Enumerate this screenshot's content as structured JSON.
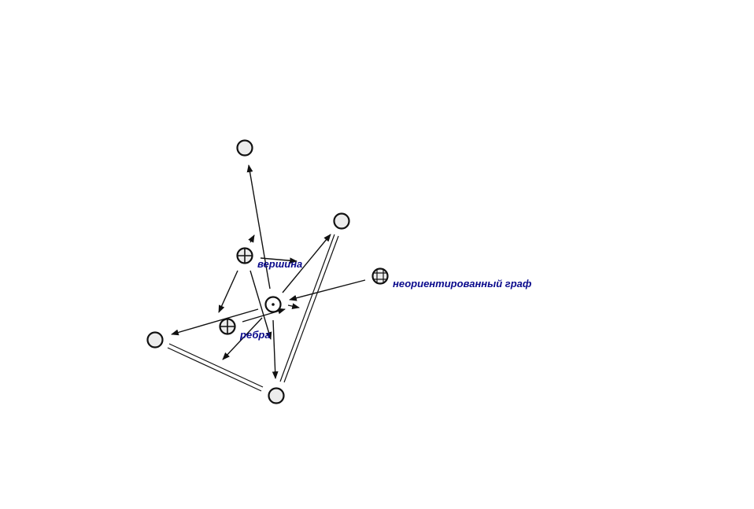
{
  "labels": {
    "vertex": "вершина",
    "edges": "ребра",
    "undirected_graph": "неориентированный граф"
  },
  "colors": {
    "label": "#0a0a8c",
    "node_fill": "#ececec",
    "stroke": "#111111"
  },
  "icons": {
    "cross_node": "circled-plus-icon",
    "grid_node": "circled-grid-icon",
    "dot_node": "circled-dot-icon"
  }
}
